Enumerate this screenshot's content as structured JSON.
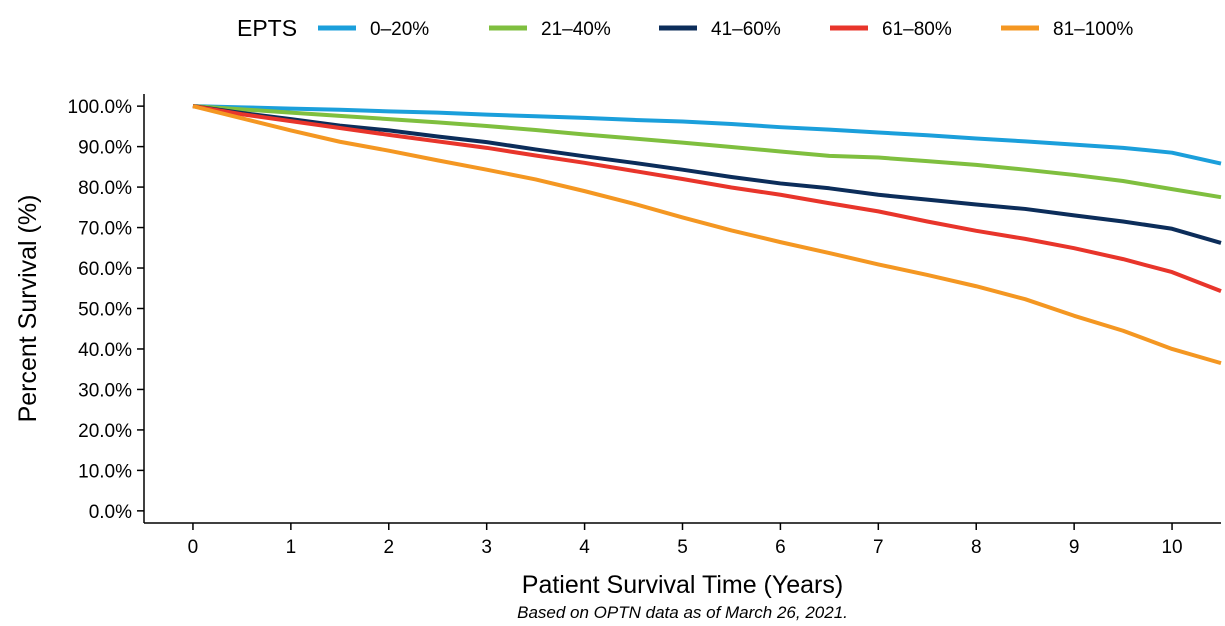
{
  "chart_data": {
    "type": "line",
    "title": "",
    "xlabel": "Patient Survival Time (Years)",
    "ylabel": "Percent Survival (%)",
    "caption": "Based on OPTN data as of March 26, 2021.",
    "legend": {
      "title": "EPTS",
      "position": "top"
    },
    "xlim": [
      -0.5,
      10.5
    ],
    "ylim": [
      -0.03,
      1.03
    ],
    "x_ticks": [
      "0",
      "1",
      "2",
      "3",
      "4",
      "5",
      "6",
      "7",
      "8",
      "9",
      "10"
    ],
    "y_ticks": [
      "0.0%",
      "10.0%",
      "20.0%",
      "30.0%",
      "40.0%",
      "50.0%",
      "60.0%",
      "70.0%",
      "80.0%",
      "90.0%",
      "100.0%"
    ],
    "grid": false,
    "x": [
      0,
      0.5,
      1,
      1.5,
      2,
      2.5,
      3,
      3.5,
      4,
      4.5,
      5,
      5.5,
      6,
      6.5,
      7,
      7.5,
      8,
      8.5,
      9,
      9.5,
      10,
      10.5
    ],
    "series": [
      {
        "name": "0–20%",
        "color": "#1b9fdb",
        "values": [
          1.0,
          0.997,
          0.994,
          0.991,
          0.987,
          0.984,
          0.979,
          0.975,
          0.971,
          0.966,
          0.962,
          0.956,
          0.948,
          0.942,
          0.935,
          0.928,
          0.92,
          0.913,
          0.905,
          0.897,
          0.885,
          0.858
        ]
      },
      {
        "name": "21–40%",
        "color": "#7fbf3f",
        "values": [
          1.0,
          0.992,
          0.984,
          0.976,
          0.968,
          0.96,
          0.951,
          0.941,
          0.93,
          0.92,
          0.91,
          0.899,
          0.888,
          0.877,
          0.873,
          0.864,
          0.855,
          0.843,
          0.83,
          0.815,
          0.795,
          0.775
        ]
      },
      {
        "name": "41–60%",
        "color": "#0c2d5a",
        "values": [
          1.0,
          0.983,
          0.968,
          0.952,
          0.94,
          0.925,
          0.911,
          0.893,
          0.876,
          0.86,
          0.843,
          0.825,
          0.809,
          0.797,
          0.781,
          0.769,
          0.757,
          0.746,
          0.73,
          0.715,
          0.697,
          0.662
        ]
      },
      {
        "name": "61–80%",
        "color": "#e8352b",
        "values": [
          1.0,
          0.98,
          0.963,
          0.946,
          0.929,
          0.913,
          0.897,
          0.878,
          0.86,
          0.84,
          0.82,
          0.799,
          0.781,
          0.76,
          0.74,
          0.715,
          0.692,
          0.672,
          0.649,
          0.622,
          0.59,
          0.543
        ]
      },
      {
        "name": "81–100%",
        "color": "#f49722",
        "values": [
          1.0,
          0.97,
          0.94,
          0.912,
          0.89,
          0.866,
          0.843,
          0.819,
          0.79,
          0.759,
          0.725,
          0.693,
          0.664,
          0.637,
          0.609,
          0.583,
          0.555,
          0.523,
          0.482,
          0.445,
          0.4,
          0.365
        ]
      }
    ]
  }
}
